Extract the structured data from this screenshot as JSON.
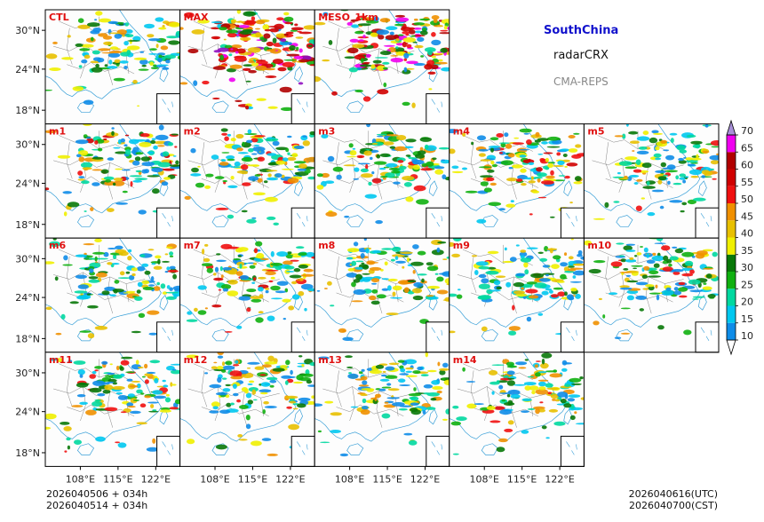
{
  "header": {
    "region": "SouthChina",
    "product": "radarCRX",
    "system": "CMA-REPS"
  },
  "panels": [
    {
      "label": "CTL",
      "intensity": 0.45,
      "seed": 11
    },
    {
      "label": "MAX",
      "intensity": 0.95,
      "seed": 23
    },
    {
      "label": "MESO_1km",
      "intensity": 0.85,
      "seed": 37
    },
    null,
    null,
    {
      "label": "m1",
      "intensity": 0.6,
      "seed": 41
    },
    {
      "label": "m2",
      "intensity": 0.55,
      "seed": 53
    },
    {
      "label": "m3",
      "intensity": 0.5,
      "seed": 67
    },
    {
      "label": "m4",
      "intensity": 0.6,
      "seed": 71
    },
    {
      "label": "m5",
      "intensity": 0.5,
      "seed": 83
    },
    {
      "label": "m6",
      "intensity": 0.5,
      "seed": 97
    },
    {
      "label": "m7",
      "intensity": 0.6,
      "seed": 101
    },
    {
      "label": "m8",
      "intensity": 0.45,
      "seed": 113
    },
    {
      "label": "m9",
      "intensity": 0.5,
      "seed": 127
    },
    {
      "label": "m10",
      "intensity": 0.55,
      "seed": 131
    },
    {
      "label": "m11",
      "intensity": 0.55,
      "seed": 149
    },
    {
      "label": "m12",
      "intensity": 0.5,
      "seed": 151
    },
    {
      "label": "m13",
      "intensity": 0.45,
      "seed": 163
    },
    {
      "label": "m14",
      "intensity": 0.5,
      "seed": 173
    },
    null
  ],
  "axes": {
    "lat_ticks": [
      "30°N",
      "24°N",
      "18°N"
    ],
    "lon_ticks": [
      "108°E",
      "115°E",
      "122°E"
    ]
  },
  "colorbar": {
    "levels": [
      "10",
      "15",
      "20",
      "25",
      "30",
      "35",
      "40",
      "45",
      "50",
      "55",
      "60",
      "65",
      "70"
    ],
    "colors": [
      "#0e8ce8",
      "#00c8f0",
      "#00d8a0",
      "#10b010",
      "#087808",
      "#f0f000",
      "#e8c000",
      "#f09000",
      "#f01010",
      "#d00000",
      "#b00000",
      "#f000f0",
      "#9010c0",
      "#a890d8"
    ]
  },
  "times": {
    "init_utc": "2026040506  +  034h",
    "init_cst": "2026040514  +  034h",
    "valid_utc": "2026040616(UTC)",
    "valid_cst": "2026040700(CST)"
  }
}
